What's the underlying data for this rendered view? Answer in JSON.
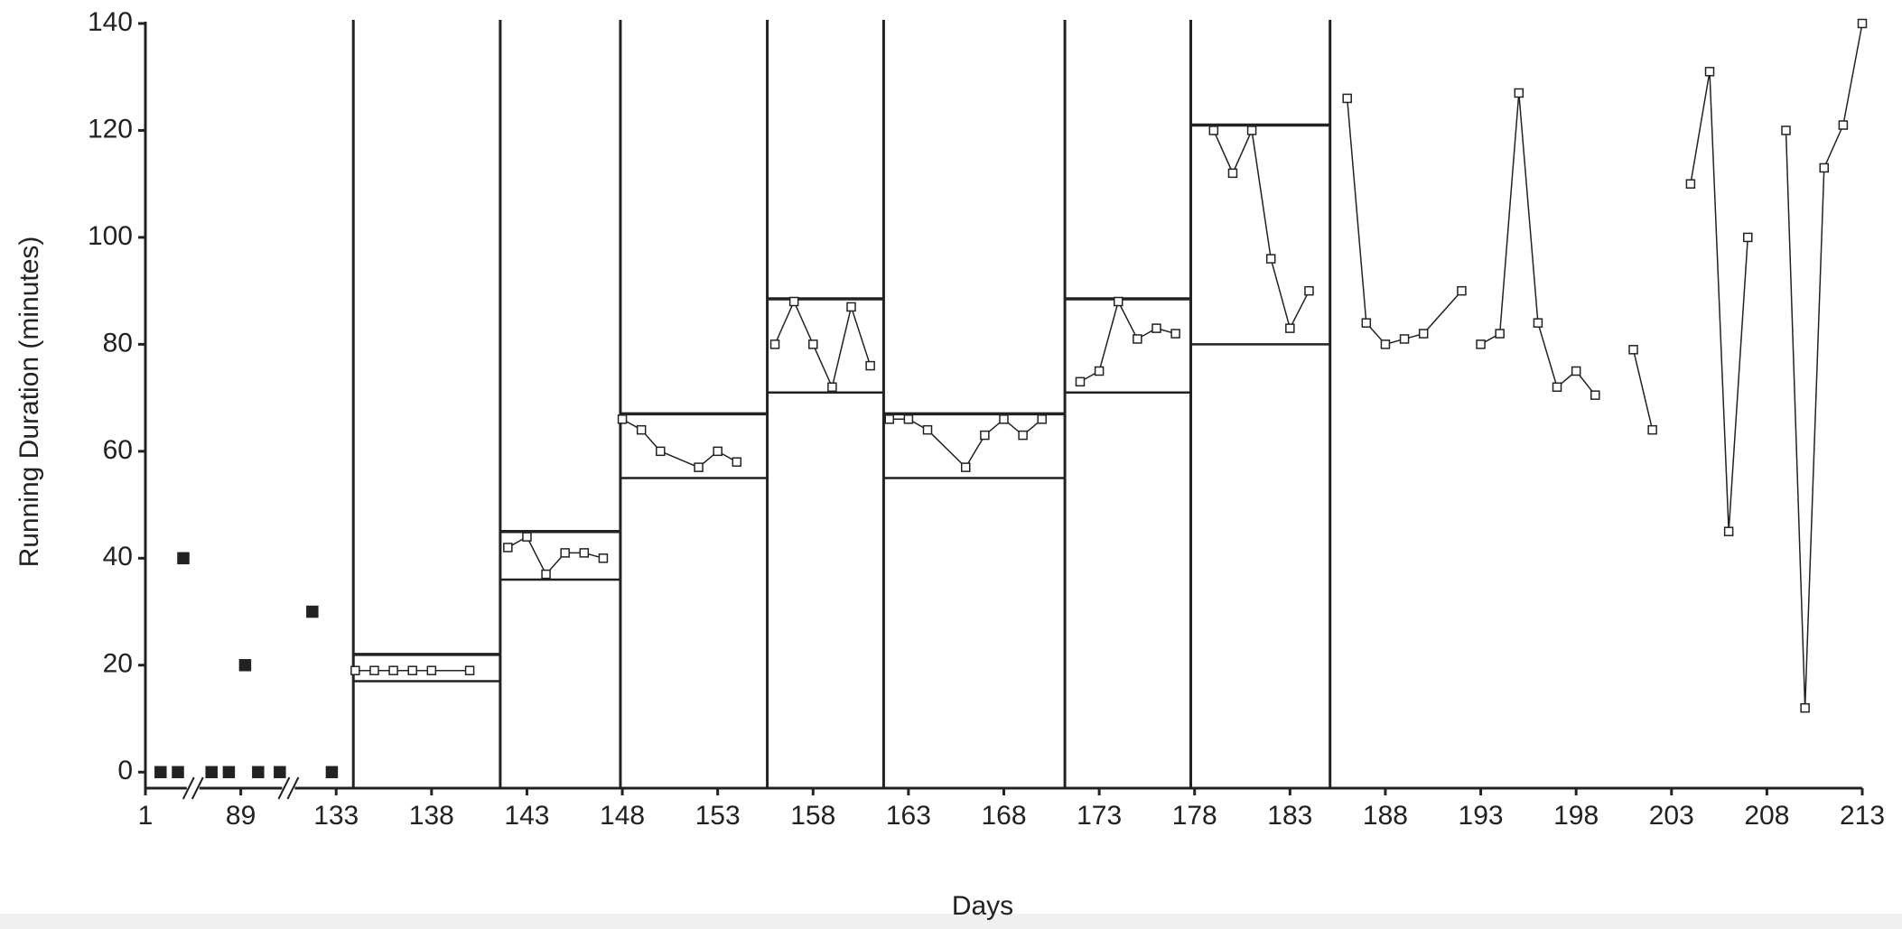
{
  "chart_data": {
    "type": "line",
    "xlabel": "Days",
    "ylabel": "Running Duration (minutes)",
    "xlim": [
      1,
      213
    ],
    "xticks": [
      1,
      89,
      133,
      138,
      143,
      148,
      153,
      158,
      163,
      168,
      173,
      178,
      183,
      188,
      193,
      198,
      203,
      208,
      213
    ],
    "ylim": [
      -3,
      140
    ],
    "yticks": [
      0,
      20,
      40,
      60,
      80,
      100,
      120,
      140
    ],
    "color": "#222222",
    "phase_lines": [
      133.9,
      141.6,
      147.9,
      155.6,
      161.7,
      171.2,
      177.8,
      185.1
    ],
    "criteria": [
      {
        "x": [
          133.9,
          141.6
        ],
        "lower": 17,
        "upper": 22
      },
      {
        "x": [
          141.6,
          147.9
        ],
        "lower": 36,
        "upper": 45
      },
      {
        "x": [
          147.9,
          155.6
        ],
        "lower": 55,
        "upper": 67
      },
      {
        "x": [
          155.6,
          161.7
        ],
        "lower": 71,
        "upper": 88.5
      },
      {
        "x": [
          161.7,
          171.2
        ],
        "lower": 55,
        "upper": 67
      },
      {
        "x": [
          171.2,
          177.8
        ],
        "lower": 71,
        "upper": 88.5
      },
      {
        "x": [
          177.8,
          185.1
        ],
        "lower": 80,
        "upper": 121
      }
    ],
    "series": [
      {
        "marker": "filled",
        "connect": false,
        "x": [
          15,
          31,
          36,
          62,
          78,
          91,
          97,
          107,
          122,
          131
        ],
        "values": [
          0,
          0,
          40,
          0,
          0,
          20,
          0,
          0,
          30,
          0
        ]
      },
      {
        "marker": "open",
        "connect": true,
        "x": [
          134,
          135,
          136,
          137,
          138,
          140
        ],
        "values": [
          19,
          19,
          19,
          19,
          19,
          19
        ]
      },
      {
        "marker": "open",
        "connect": true,
        "x": [
          142,
          143,
          144,
          145,
          146,
          147
        ],
        "values": [
          42,
          44,
          37,
          41,
          41,
          40
        ]
      },
      {
        "marker": "open",
        "connect": true,
        "x": [
          148,
          149,
          150,
          152,
          153,
          154
        ],
        "values": [
          66,
          64,
          60,
          57,
          60,
          58
        ]
      },
      {
        "marker": "open",
        "connect": true,
        "x": [
          156,
          157,
          158,
          159,
          160,
          161
        ],
        "values": [
          80,
          88,
          80,
          72,
          87,
          76
        ]
      },
      {
        "marker": "open",
        "connect": true,
        "x": [
          162,
          163,
          164,
          166,
          167,
          168,
          169,
          170
        ],
        "values": [
          66,
          66,
          64,
          57,
          63,
          66,
          63,
          66
        ]
      },
      {
        "marker": "open",
        "connect": true,
        "x": [
          172,
          173,
          174,
          175,
          176,
          177
        ],
        "values": [
          73,
          75,
          88,
          81,
          83,
          82
        ]
      },
      {
        "marker": "open",
        "connect": true,
        "x": [
          179,
          180,
          181,
          182,
          183,
          184
        ],
        "values": [
          120,
          112,
          120,
          96,
          83,
          90
        ]
      },
      {
        "marker": "open",
        "connect": true,
        "x": [
          186,
          187,
          188,
          189,
          190,
          192
        ],
        "values": [
          126,
          84,
          80,
          81,
          82,
          90
        ]
      },
      {
        "marker": "open",
        "connect": true,
        "x": [
          193,
          194,
          195,
          196,
          197,
          198,
          199
        ],
        "values": [
          80,
          82,
          127,
          84,
          72,
          75,
          70.5
        ]
      },
      {
        "marker": "open",
        "connect": true,
        "x": [
          201,
          202
        ],
        "values": [
          79,
          64
        ]
      },
      {
        "marker": "open",
        "connect": true,
        "x": [
          204,
          205,
          206,
          207
        ],
        "values": [
          110,
          131,
          45,
          100
        ]
      },
      {
        "marker": "open",
        "connect": true,
        "x": [
          209,
          210,
          211,
          212,
          213
        ],
        "values": [
          120,
          12,
          113,
          121,
          140
        ]
      }
    ]
  }
}
